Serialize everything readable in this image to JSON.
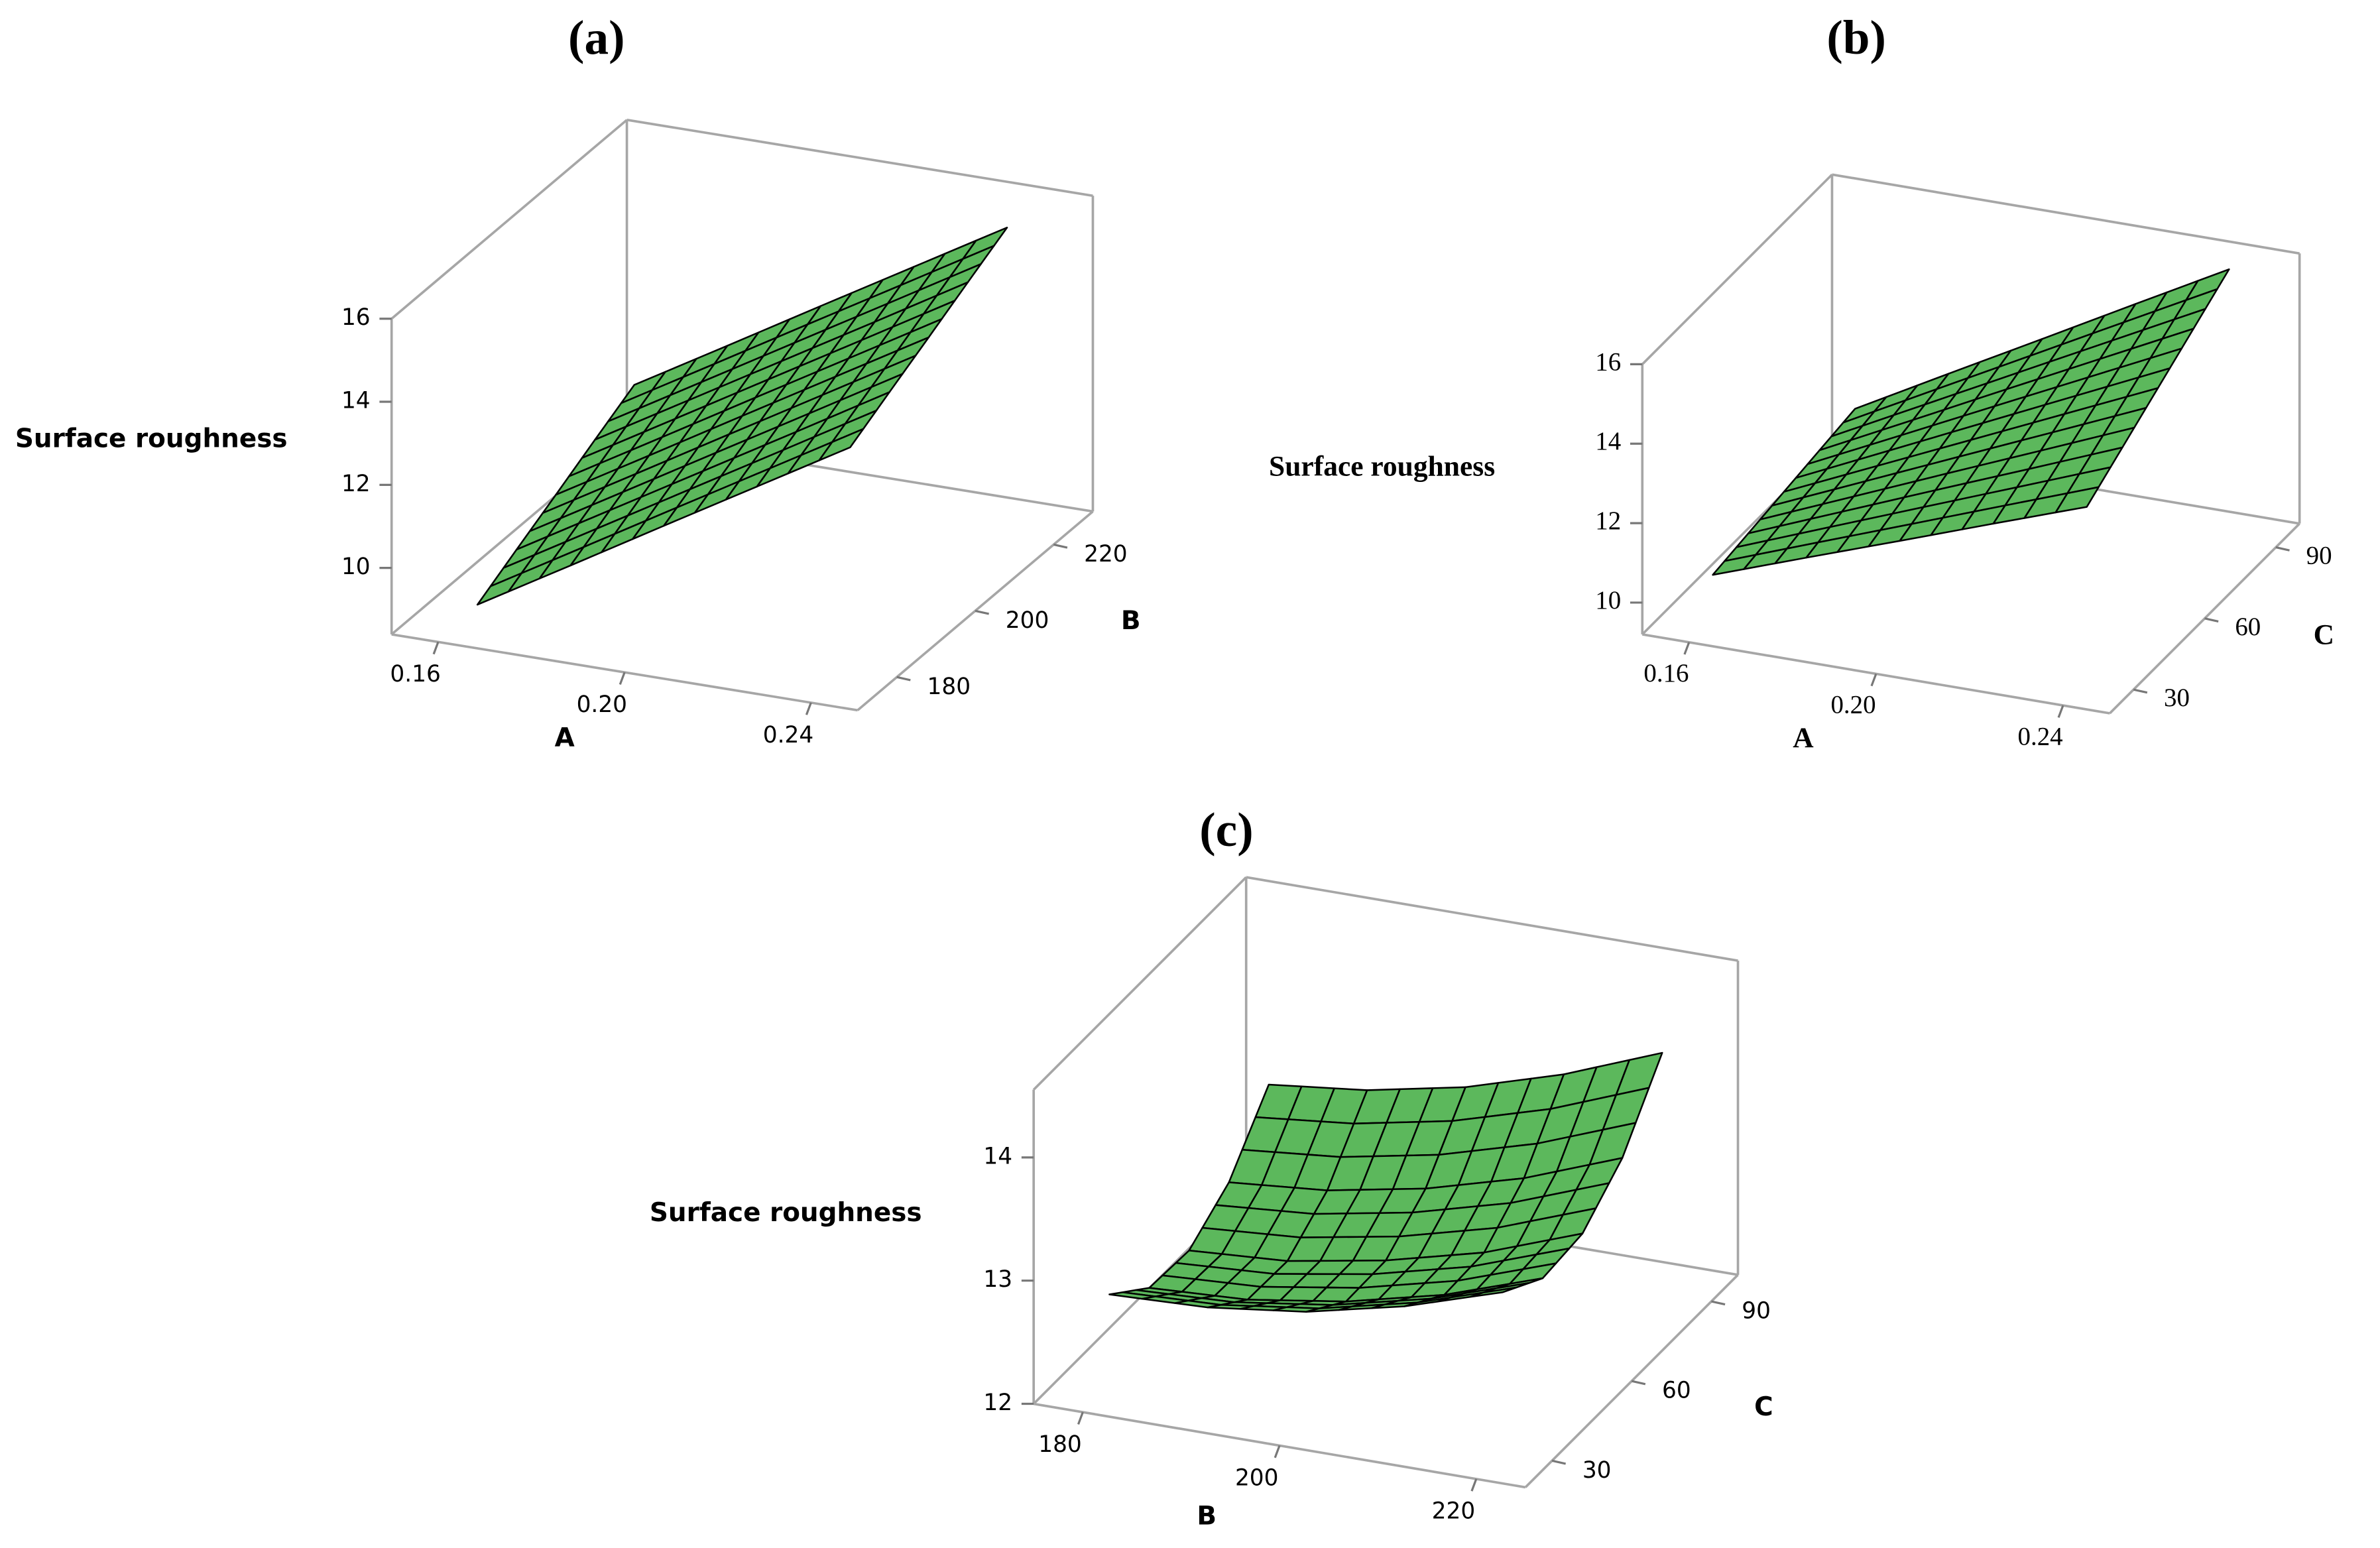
{
  "chart_data": [
    {
      "type": "surface",
      "title": "(a)",
      "zlabel": "Surface roughness",
      "xlabel": "A",
      "ylabel": "B",
      "color": "#5cb85c",
      "x": [
        0.16,
        0.18,
        0.2,
        0.22,
        0.24
      ],
      "y": [
        180,
        190,
        200,
        210,
        220
      ],
      "z": [
        [
          8.5,
          9.81,
          11.13,
          12.44,
          13.75
        ],
        [
          9.03,
          10.34,
          11.65,
          12.96,
          14.28
        ],
        [
          9.55,
          10.86,
          12.18,
          13.49,
          14.8
        ],
        [
          10.08,
          11.39,
          12.7,
          14.01,
          15.33
        ],
        [
          10.6,
          11.91,
          13.23,
          14.54,
          15.85
        ]
      ],
      "xlim": [
        0.15,
        0.25
      ],
      "ylim": [
        170,
        230
      ],
      "zlim": [
        8.4,
        16
      ],
      "xticks": [
        0.16,
        {
          "value": 0.2,
          "label": "0.20"
        },
        0.24
      ],
      "yticks": [
        180,
        200,
        220
      ],
      "zticks": [
        10,
        12,
        14,
        16
      ]
    },
    {
      "type": "surface",
      "title": "(b)",
      "zlabel": "Surface roughness",
      "xlabel": "A",
      "ylabel": "C",
      "color": "#5cb85c",
      "x": [
        0.16,
        0.18,
        0.2,
        0.22,
        0.24
      ],
      "y": [
        30,
        45,
        60,
        75,
        90
      ],
      "z": [
        [
          10.3,
          11.13,
          11.95,
          12.78,
          13.6
        ],
        [
          10.45,
          11.39,
          12.33,
          13.26,
          14.2
        ],
        [
          10.6,
          11.65,
          12.7,
          13.75,
          14.8
        ],
        [
          10.75,
          11.91,
          13.08,
          14.24,
          15.4
        ],
        [
          10.9,
          12.18,
          13.45,
          14.73,
          16.0
        ]
      ],
      "xlim": [
        0.15,
        0.25
      ],
      "ylim": [
        20,
        100
      ],
      "zlim": [
        9.2,
        16
      ],
      "xticks": [
        0.16,
        {
          "value": 0.2,
          "label": "0.20"
        },
        0.24
      ],
      "yticks": [
        30,
        60,
        90
      ],
      "zticks": [
        10,
        12,
        14,
        16
      ]
    },
    {
      "type": "surface",
      "title": "(c)",
      "zlabel": "Surface roughness",
      "xlabel": "B",
      "ylabel": "C",
      "color": "#5cb85c",
      "x": [
        180,
        190,
        200,
        210,
        220
      ],
      "y": [
        30,
        45,
        60,
        75,
        90
      ],
      "z": [
        [
          12.74,
          12.77,
          12.87,
          13.05,
          13.3
        ],
        [
          12.47,
          12.51,
          12.63,
          12.82,
          13.09
        ],
        [
          12.45,
          12.5,
          12.64,
          12.84,
          13.13
        ],
        [
          12.68,
          12.75,
          12.9,
          13.12,
          13.42
        ],
        [
          13.15,
          13.24,
          13.4,
          13.64,
          13.95
        ]
      ],
      "xlim": [
        175,
        225
      ],
      "ylim": [
        20,
        100
      ],
      "zlim": [
        12,
        14.55
      ],
      "xticks": [
        180,
        200,
        220
      ],
      "yticks": [
        30,
        60,
        90
      ],
      "zticks": [
        12,
        13,
        14
      ]
    }
  ]
}
